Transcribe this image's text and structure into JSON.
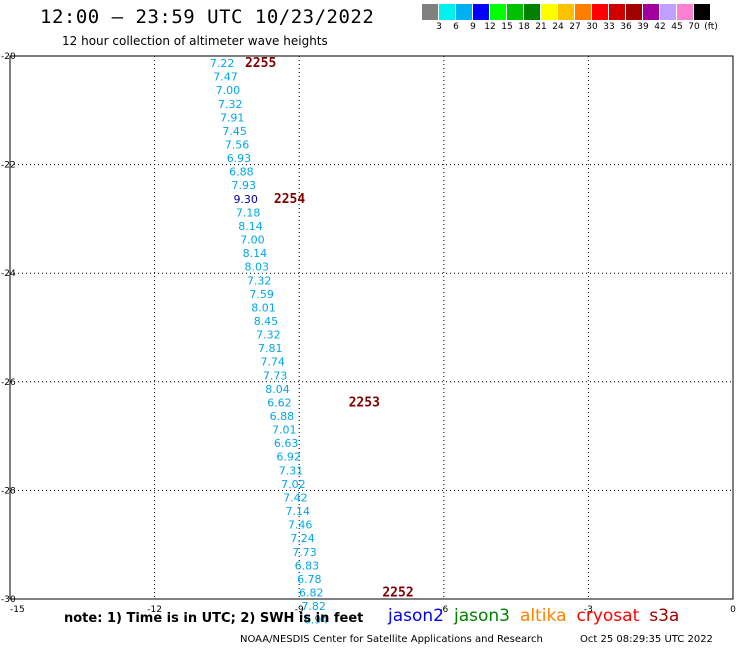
{
  "header": {
    "title": "12:00 – 23:59 UTC 10/23/2022",
    "subtitle": "12 hour collection of altimeter wave heights"
  },
  "legend": {
    "colors": [
      "#808080",
      "#00f0f0",
      "#00b0f0",
      "#0000ff",
      "#00ff00",
      "#00c000",
      "#008000",
      "#ffff00",
      "#ffc000",
      "#ff8000",
      "#ff0000",
      "#d00000",
      "#a00000",
      "#a000a0",
      "#c0a0ff",
      "#ff80d0",
      "#000000"
    ],
    "labels": [
      "3",
      "6",
      "9",
      "12",
      "15",
      "18",
      "21",
      "24",
      "27",
      "30",
      "33",
      "36",
      "39",
      "42",
      "45",
      "70",
      "(ft)"
    ]
  },
  "missions": [
    {
      "name": "jason2",
      "color": "#0000ff"
    },
    {
      "name": "jason3",
      "color": "#008000"
    },
    {
      "name": "altika",
      "color": "#ff8000"
    },
    {
      "name": "cryosat",
      "color": "#ff0000"
    },
    {
      "name": "s3a",
      "color": "#a00000"
    }
  ],
  "footer": {
    "note": "note: 1) Time is in UTC; 2) SWH is in feet",
    "credit": "NOAA/NESDIS Center for Satellite Applications and Research",
    "generated": "Oct 25 08:29:35 UTC 2022"
  },
  "chart_data": {
    "type": "scatter",
    "xlim": [
      -15,
      0
    ],
    "ylim": [
      -30,
      -20
    ],
    "x_ticks": [
      -15,
      -12,
      -9,
      -6,
      -3,
      0
    ],
    "y_ticks": [
      -20,
      -22,
      -24,
      -26,
      -28,
      -30
    ],
    "grid": true,
    "value_color": "#00a8e8",
    "time_color": "#800000",
    "points": [
      {
        "x": -10.6,
        "y": -20.13,
        "value": "7.22"
      },
      {
        "x": -10.53,
        "y": -20.38,
        "value": "7.47"
      },
      {
        "x": -10.48,
        "y": -20.63,
        "value": "7.00"
      },
      {
        "x": -10.43,
        "y": -20.88,
        "value": "7.32"
      },
      {
        "x": -10.39,
        "y": -21.13,
        "value": "7.91"
      },
      {
        "x": -10.34,
        "y": -21.38,
        "value": "7.45"
      },
      {
        "x": -10.29,
        "y": -21.63,
        "value": "7.56"
      },
      {
        "x": -10.25,
        "y": -21.88,
        "value": "6.93"
      },
      {
        "x": -10.2,
        "y": -22.13,
        "value": "6.88"
      },
      {
        "x": -10.15,
        "y": -22.38,
        "value": "7.93"
      },
      {
        "x": -10.11,
        "y": -22.63,
        "value": "9.30",
        "color": "#0000a0"
      },
      {
        "x": -10.06,
        "y": -22.88,
        "value": "7.18"
      },
      {
        "x": -10.01,
        "y": -23.13,
        "value": "8.14"
      },
      {
        "x": -9.97,
        "y": -23.38,
        "value": "7.00"
      },
      {
        "x": -9.92,
        "y": -23.63,
        "value": "8.14"
      },
      {
        "x": -9.88,
        "y": -23.88,
        "value": "8.03"
      },
      {
        "x": -9.83,
        "y": -24.13,
        "value": "7.32"
      },
      {
        "x": -9.78,
        "y": -24.38,
        "value": "7.59"
      },
      {
        "x": -9.74,
        "y": -24.63,
        "value": "8.01"
      },
      {
        "x": -9.69,
        "y": -24.88,
        "value": "8.45"
      },
      {
        "x": -9.64,
        "y": -25.13,
        "value": "7.32"
      },
      {
        "x": -9.6,
        "y": -25.38,
        "value": "7.81"
      },
      {
        "x": -9.55,
        "y": -25.63,
        "value": "7.74"
      },
      {
        "x": -9.5,
        "y": -25.88,
        "value": "7.73"
      },
      {
        "x": -9.45,
        "y": -26.13,
        "value": "8.04"
      },
      {
        "x": -9.41,
        "y": -26.38,
        "value": "6.62"
      },
      {
        "x": -9.36,
        "y": -26.63,
        "value": "6.88"
      },
      {
        "x": -9.31,
        "y": -26.88,
        "value": "7.01"
      },
      {
        "x": -9.27,
        "y": -27.13,
        "value": "6.63"
      },
      {
        "x": -9.22,
        "y": -27.38,
        "value": "6.92"
      },
      {
        "x": -9.17,
        "y": -27.63,
        "value": "7.31"
      },
      {
        "x": -9.12,
        "y": -27.88,
        "value": "7.02"
      },
      {
        "x": -9.08,
        "y": -28.13,
        "value": "7.42"
      },
      {
        "x": -9.03,
        "y": -28.38,
        "value": "7.14"
      },
      {
        "x": -8.98,
        "y": -28.63,
        "value": "7.46"
      },
      {
        "x": -8.93,
        "y": -28.88,
        "value": "7.24"
      },
      {
        "x": -8.89,
        "y": -29.13,
        "value": "7.73"
      },
      {
        "x": -8.84,
        "y": -29.38,
        "value": "6.83"
      },
      {
        "x": -8.79,
        "y": -29.63,
        "value": "6.78"
      },
      {
        "x": -8.75,
        "y": -29.88,
        "value": "6.82"
      },
      {
        "x": -8.7,
        "y": -30.13,
        "value": "7.82"
      },
      {
        "x": -8.65,
        "y": -30.38,
        "value": "6.94"
      }
    ],
    "time_labels": [
      {
        "x": -9.8,
        "y": -20.13,
        "label": "2255"
      },
      {
        "x": -9.2,
        "y": -22.63,
        "label": "2254"
      },
      {
        "x": -7.65,
        "y": -26.38,
        "label": "2253"
      },
      {
        "x": -6.95,
        "y": -29.88,
        "label": "2252"
      }
    ]
  }
}
